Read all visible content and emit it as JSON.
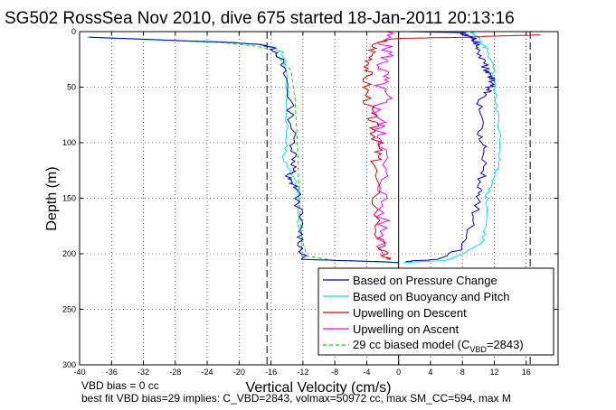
{
  "chart_data": {
    "type": "line",
    "title": "SG502 RossSea Nov 2010, dive 675 started 18-Jan-2011 20:13:16",
    "xlabel": "Vertical Velocity (cm/s)",
    "ylabel": "Depth (m)",
    "xlim": [
      -40,
      20
    ],
    "ylim": [
      300,
      0
    ],
    "y_reversed": true,
    "xticks": [
      -40,
      -36,
      -32,
      -28,
      -24,
      -20,
      -16,
      -12,
      -8,
      -4,
      0,
      4,
      8,
      12,
      16
    ],
    "yticks": [
      0,
      50,
      100,
      150,
      200,
      250,
      300
    ],
    "grid": true,
    "legend_position": "bottom-right",
    "vlines": [
      {
        "x": -16.5,
        "style": "dashed"
      },
      {
        "x": 16.5,
        "style": "dashed"
      },
      {
        "x": 0,
        "style": "solid"
      }
    ],
    "series": [
      {
        "name": "Based on Pressure Change",
        "color": "#0000cc",
        "x": [
          -39,
          -20,
          -17,
          -16,
          -15,
          -14.5,
          -13.8,
          -13.5,
          -13.2,
          -13,
          -13.2,
          -14,
          -13.6,
          -12.8,
          -12.5,
          -12.3,
          -12.2,
          -12,
          -3,
          0
        ],
        "y": [
          5,
          10,
          12,
          14,
          20,
          35,
          50,
          75,
          100,
          115,
          125,
          130,
          135,
          140,
          160,
          180,
          195,
          205,
          207,
          208
        ],
        "up_x": [
          0.5,
          5,
          8,
          9.5,
          10,
          10.3,
          10.5,
          10.8,
          10.3,
          10.2,
          10,
          11,
          11.5,
          11.8,
          11.5,
          11,
          10.5,
          10.2,
          9.8,
          9.5,
          9,
          8.5,
          8,
          1,
          0
        ],
        "up_y": [
          207,
          205,
          195,
          170,
          150,
          140,
          125,
          105,
          95,
          80,
          65,
          55,
          50,
          45,
          40,
          35,
          25,
          15,
          10,
          7,
          5,
          3,
          1,
          0,
          0
        ]
      },
      {
        "name": "Based on Buoyancy and Pitch",
        "color": "#00e5e5",
        "x": [
          -39,
          -21,
          -17,
          -15.5,
          -14.5,
          -14,
          -14,
          -14,
          -14.5,
          -13.5,
          -13,
          -12.5,
          -12.5,
          -12.3,
          -12,
          -3,
          0
        ],
        "y": [
          5,
          10,
          12,
          14,
          20,
          40,
          70,
          100,
          115,
          125,
          135,
          150,
          175,
          190,
          205,
          207,
          208
        ],
        "up_x": [
          0.5,
          6,
          8,
          10.5,
          11,
          11,
          11.5,
          12,
          12.5,
          12.8,
          12.5,
          12.2,
          12,
          11.8,
          11,
          10.3,
          10,
          9.5,
          9.3,
          9,
          2,
          0
        ],
        "up_y": [
          208,
          206,
          200,
          190,
          175,
          150,
          140,
          128,
          120,
          105,
          80,
          60,
          45,
          30,
          15,
          10,
          5,
          3,
          1,
          0,
          0,
          0
        ]
      },
      {
        "name": "Upwelling on Descent",
        "color": "#e00000",
        "x": [
          18,
          12,
          9,
          0,
          -3,
          -3.3,
          -3.6,
          -4,
          -4,
          -3.6,
          -3.3,
          -3,
          -2.6,
          -2.6,
          -3,
          -2.8,
          -2.6,
          -2.2,
          -1.6,
          -1
        ],
        "y": [
          3,
          4,
          5,
          6,
          10,
          20,
          30,
          40,
          55,
          70,
          80,
          90,
          100,
          110,
          120,
          150,
          180,
          195,
          203,
          205
        ]
      },
      {
        "name": "Upwelling on Ascent",
        "color": "#ff00ff",
        "x": [
          -1.3,
          -1.8,
          -1.2,
          -2.2,
          -1.8,
          -2.4,
          -1.6,
          -2.8,
          -2.2,
          -2.5,
          -1.8,
          -2,
          -1.9,
          -2.1,
          -2,
          -2
        ],
        "y": [
          0,
          10,
          20,
          30,
          40,
          50,
          60,
          70,
          80,
          90,
          100,
          120,
          140,
          160,
          180,
          200
        ]
      },
      {
        "name": "29 cc biased model (C_VBD=2843)",
        "color": "#00dd00",
        "style": "dashed",
        "x": [
          -39,
          -22,
          -18,
          -16,
          -13.5,
          -13,
          -12.7,
          -12.5,
          -12.3,
          -12,
          -11.5,
          -8,
          0
        ],
        "y": [
          5,
          10,
          13,
          16,
          35,
          60,
          100,
          140,
          170,
          190,
          202,
          206,
          208
        ]
      }
    ],
    "legend_html": {
      "entry5_prefix": "29 cc biased model (C",
      "entry5_sub": "VBD",
      "entry5_suffix": "=2843)"
    },
    "annotations": [
      "VBD bias = 0 cc",
      "best fit VBD bias=29 implies: C_VBD=2843, volmax=50972 cc, max SM_CC=594, max M"
    ]
  },
  "colors": {
    "pressure": "#0000cc",
    "buoyancy": "#00e5e5",
    "descent": "#e00000",
    "ascent": "#ff00ff",
    "model": "#00dd00"
  }
}
